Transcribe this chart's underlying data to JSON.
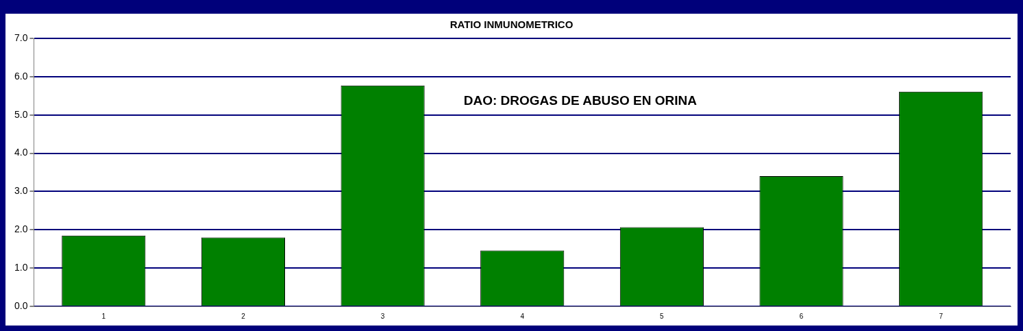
{
  "chart_data": {
    "type": "bar",
    "title": "RATIO INMUNOMETRICO",
    "categories": [
      "1",
      "2",
      "3",
      "4",
      "5",
      "6",
      "7"
    ],
    "values": [
      1.85,
      1.8,
      5.77,
      1.46,
      2.07,
      3.4,
      5.61
    ],
    "color": "#008000",
    "ylim": [
      0,
      7
    ],
    "yticks": [
      {
        "value": 0,
        "label": "0.0"
      },
      {
        "value": 1,
        "label": "1.0"
      },
      {
        "value": 2,
        "label": "2.0"
      },
      {
        "value": 3,
        "label": "3.0"
      },
      {
        "value": 4,
        "label": "4.0"
      },
      {
        "value": 5,
        "label": "5.0"
      },
      {
        "value": 6,
        "label": "6.0"
      },
      {
        "value": 7,
        "label": "7.0"
      }
    ],
    "grid": "y",
    "annotations": [
      "DAO: DROGAS DE ABUSO EN ORINA"
    ]
  }
}
